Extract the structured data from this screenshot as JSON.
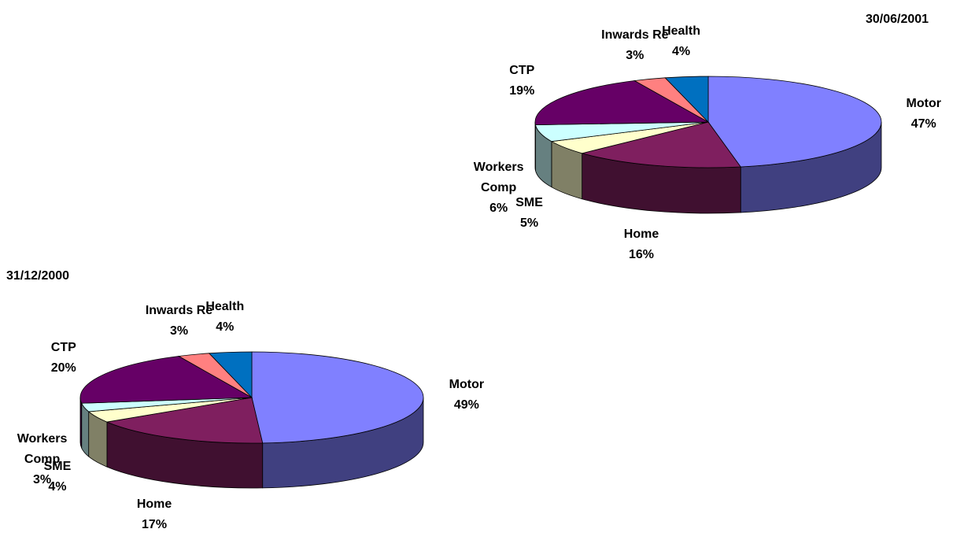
{
  "chart_data": [
    {
      "type": "pie",
      "title": "30/06/2001",
      "categories": [
        "Motor",
        "Home",
        "SME",
        "Workers Comp",
        "CTP",
        "Inwards Re",
        "Health"
      ],
      "values": [
        47,
        16,
        5,
        6,
        19,
        3,
        4
      ],
      "value_labels": [
        "47%",
        "16%",
        "5%",
        "6%",
        "19%",
        "3%",
        "4%"
      ],
      "colors": [
        "#8080ff",
        "#7f1f5f",
        "#ffffcc",
        "#ccffff",
        "#660066",
        "#ff8080",
        "#0070c0"
      ]
    },
    {
      "type": "pie",
      "title": "31/12/2000",
      "categories": [
        "Motor",
        "Home",
        "SME",
        "Workers Comp",
        "CTP",
        "Inwards Re",
        "Health"
      ],
      "values": [
        49,
        17,
        4,
        3,
        20,
        3,
        4
      ],
      "value_labels": [
        "49%",
        "17%",
        "4%",
        "3%",
        "20%",
        "3%",
        "4%"
      ],
      "colors": [
        "#8080ff",
        "#7f1f5f",
        "#ffffcc",
        "#ccffff",
        "#660066",
        "#ff8080",
        "#0070c0"
      ]
    }
  ]
}
